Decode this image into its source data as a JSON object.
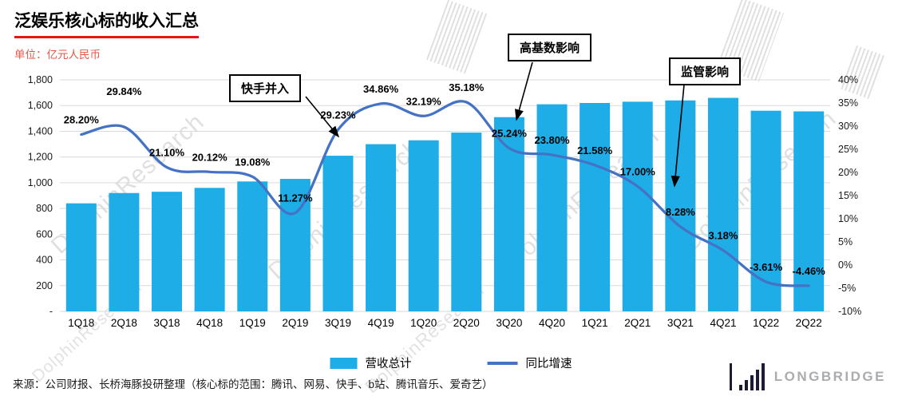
{
  "header": {
    "title": "泛娱乐核心标的收入汇总",
    "subtitle": "单位：亿元人民币"
  },
  "watermark": {
    "text": "DolphinResearch"
  },
  "annotations": [
    {
      "label": "快手并入"
    },
    {
      "label": "高基数影响"
    },
    {
      "label": "监管影响"
    }
  ],
  "legend": {
    "items": [
      {
        "label": "营收总计",
        "type": "bar",
        "color": "#1fade8"
      },
      {
        "label": "同比增速",
        "type": "line",
        "color": "#4472c4"
      }
    ],
    "position": "bottom"
  },
  "footer": {
    "source": "来源：公司财报、长桥海豚投研整理（核心标的范围：腾讯、网易、快手、b站、腾讯音乐、爱奇艺）",
    "logo_text": "LONGBRIDGE"
  },
  "palette": {
    "bar": "#1fade8",
    "line": "#4472c4",
    "title_underline": "#ea140c",
    "subtitle_text": "#e8564a",
    "gridline": "#dadada"
  },
  "chart_data": {
    "type": "bar",
    "subtype": "combo-bar-line",
    "title": "泛娱乐核心标的收入汇总",
    "unit": "亿元人民币",
    "categories": [
      "1Q18",
      "2Q18",
      "3Q18",
      "4Q18",
      "1Q19",
      "2Q19",
      "3Q19",
      "4Q19",
      "1Q20",
      "2Q20",
      "3Q20",
      "4Q20",
      "1Q21",
      "2Q21",
      "3Q21",
      "4Q21",
      "1Q22",
      "2Q22"
    ],
    "series": [
      {
        "name": "营收总计",
        "type": "bar",
        "axis": "left",
        "color": "#1fade8",
        "values": [
          840,
          920,
          930,
          960,
          1010,
          1030,
          1210,
          1300,
          1330,
          1390,
          1510,
          1610,
          1620,
          1630,
          1640,
          1660,
          1560,
          1555
        ]
      },
      {
        "name": "同比增速",
        "type": "line",
        "axis": "right",
        "color": "#4472c4",
        "values": [
          28.2,
          29.84,
          21.1,
          20.12,
          19.08,
          11.27,
          29.23,
          34.86,
          32.19,
          35.18,
          25.24,
          23.8,
          21.58,
          17.0,
          8.28,
          3.18,
          -3.61,
          -4.46
        ],
        "labels": [
          "28.20%",
          "29.84%",
          "21.10%",
          "20.12%",
          "19.08%",
          "11.27%",
          "29.23%",
          "34.86%",
          "32.19%",
          "35.18%",
          "25.24%",
          "23.80%",
          "21.58%",
          "17.00%",
          "8.28%",
          "3.18%",
          "-3.61%",
          "-4.46%"
        ]
      }
    ],
    "left_axis": {
      "min": 0,
      "max": 1800,
      "step": 200,
      "tick_labels": [
        "-",
        "200",
        "400",
        "600",
        "800",
        "1,000",
        "1,200",
        "1,400",
        "1,600",
        "1,800"
      ]
    },
    "right_axis": {
      "min": -10,
      "max": 40,
      "step": 5,
      "tick_labels": [
        "-10%",
        "-5%",
        "0%",
        "5%",
        "10%",
        "15%",
        "20%",
        "25%",
        "30%",
        "35%",
        "40%"
      ]
    },
    "grid": true,
    "legend_position": "bottom"
  }
}
